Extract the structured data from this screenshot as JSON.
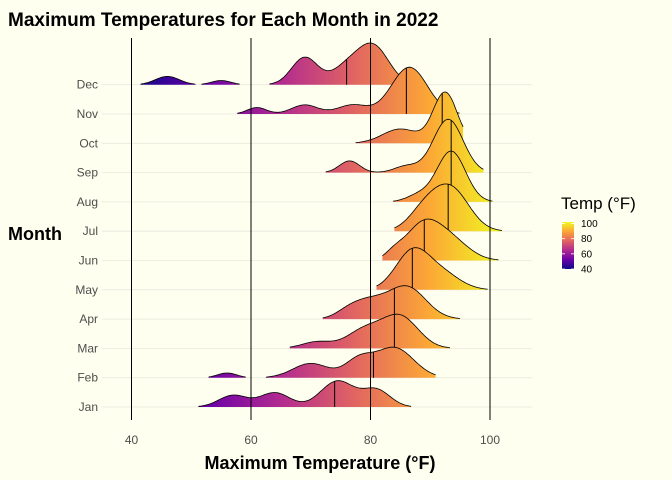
{
  "chart_data": {
    "type": "ridgeline",
    "title": "Maximum Temperatures for Each Month in 2022",
    "xlabel": "Maximum Temperature (°F)",
    "ylabel": "Month",
    "xlim": [
      35,
      107
    ],
    "x_ticks": [
      40,
      60,
      80,
      100
    ],
    "reference_lines_x": [
      40,
      60,
      80,
      100
    ],
    "grid": "horizontal minor lines",
    "legend": {
      "title": "Temp (°F)",
      "ticks": [
        100,
        80,
        60,
        40
      ],
      "range": [
        40,
        102
      ],
      "colors": [
        "#0D0887",
        "#6A00A8",
        "#B12A90",
        "#E16462",
        "#FCA636",
        "#F0F921"
      ],
      "placement": "right"
    },
    "months": [
      {
        "label": "Jan",
        "median": 74,
        "range": [
          51,
          87
        ],
        "peaks": [
          [
            57,
            2.4,
            0.45
          ],
          [
            64,
            2.5,
            0.55
          ],
          [
            74.5,
            2.8,
            1.0
          ],
          [
            81,
            2.3,
            0.65
          ]
        ]
      },
      {
        "label": "Feb",
        "median": 80.5,
        "range": [
          52.5,
          91
        ],
        "peaks": [
          [
            56,
            1.6,
            0.18
          ],
          [
            70,
            3.0,
            0.55
          ],
          [
            78,
            2.3,
            0.65
          ],
          [
            84,
            3.2,
            1.15
          ]
        ]
      },
      {
        "label": "Mar",
        "median": 84,
        "range": [
          66.5,
          93.5
        ],
        "peaks": [
          [
            71,
            2.5,
            0.25
          ],
          [
            79,
            3.0,
            0.7
          ],
          [
            85,
            3.0,
            1.2
          ]
        ]
      },
      {
        "label": "Apr",
        "median": 84,
        "range": [
          72,
          95
        ],
        "peaks": [
          [
            76.5,
            2.2,
            0.35
          ],
          [
            80,
            2.5,
            0.55
          ],
          [
            86,
            3.2,
            1.25
          ]
        ]
      },
      {
        "label": "May",
        "median": 87,
        "range": [
          81,
          100
        ],
        "peaks": [
          [
            87,
            2.8,
            1.45
          ],
          [
            92,
            3.0,
            0.6
          ]
        ]
      },
      {
        "label": "Jun",
        "median": 89,
        "range": [
          82,
          101.5
        ],
        "peaks": [
          [
            84,
            1.5,
            0.25
          ],
          [
            88.5,
            2.8,
            1.2
          ],
          [
            93,
            3.2,
            0.85
          ]
        ]
      },
      {
        "label": "Jul",
        "median": 93,
        "range": [
          84,
          102
        ],
        "peaks": [
          [
            89,
            2.6,
            0.75
          ],
          [
            93.5,
            3.0,
            1.6
          ]
        ]
      },
      {
        "label": "Aug",
        "median": 93.5,
        "range": [
          83,
          100.5
        ],
        "peaks": [
          [
            88,
            2.0,
            0.25
          ],
          [
            93.5,
            2.4,
            1.95
          ]
        ]
      },
      {
        "label": "Sep",
        "median": 93.5,
        "range": [
          72.5,
          99
        ],
        "peaks": [
          [
            76.5,
            1.7,
            0.45
          ],
          [
            86,
            2.0,
            0.25
          ],
          [
            93,
            2.5,
            2.05
          ]
        ]
      },
      {
        "label": "Oct",
        "median": 92,
        "range": [
          64.5,
          95.5
        ],
        "peaks": [
          [
            85,
            3.0,
            0.55
          ],
          [
            92.5,
            2.0,
            1.95
          ]
        ]
      },
      {
        "label": "Nov",
        "median": 86,
        "range": [
          57.5,
          95
        ],
        "peaks": [
          [
            61,
            1.6,
            0.25
          ],
          [
            69,
            2.2,
            0.35
          ],
          [
            77,
            2.5,
            0.35
          ],
          [
            86.5,
            3.0,
            1.8
          ]
        ]
      },
      {
        "label": "Dec",
        "median": 76,
        "range": [
          41.5,
          88
        ],
        "peaks": [
          [
            46,
            2.0,
            0.32
          ],
          [
            55,
            1.6,
            0.16
          ],
          [
            69,
            2.2,
            1.05
          ],
          [
            76,
            2.5,
            0.65
          ],
          [
            80.5,
            2.6,
            1.45
          ]
        ]
      }
    ]
  }
}
